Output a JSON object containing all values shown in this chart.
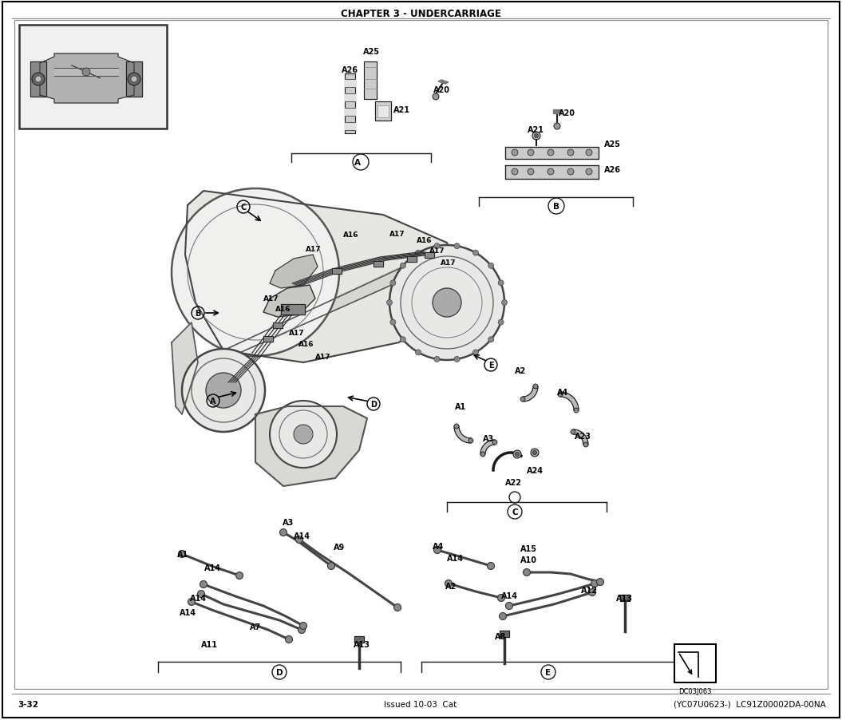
{
  "title": "CHAPTER 3 - UNDERCARRIAGE",
  "footer_left": "3-32",
  "footer_center": "Issued 10-03  Cat",
  "footer_right": "(YC07U0623-)  LC91Z00002DA-00NA",
  "bg_color": "#ffffff",
  "diagram_code": "DC03J063",
  "title_fontsize": 8.5,
  "footer_fontsize": 7.5,
  "line_color": "#1a1a1a",
  "fill_light": "#e8e8e8",
  "fill_mid": "#cccccc",
  "fill_dark": "#999999"
}
